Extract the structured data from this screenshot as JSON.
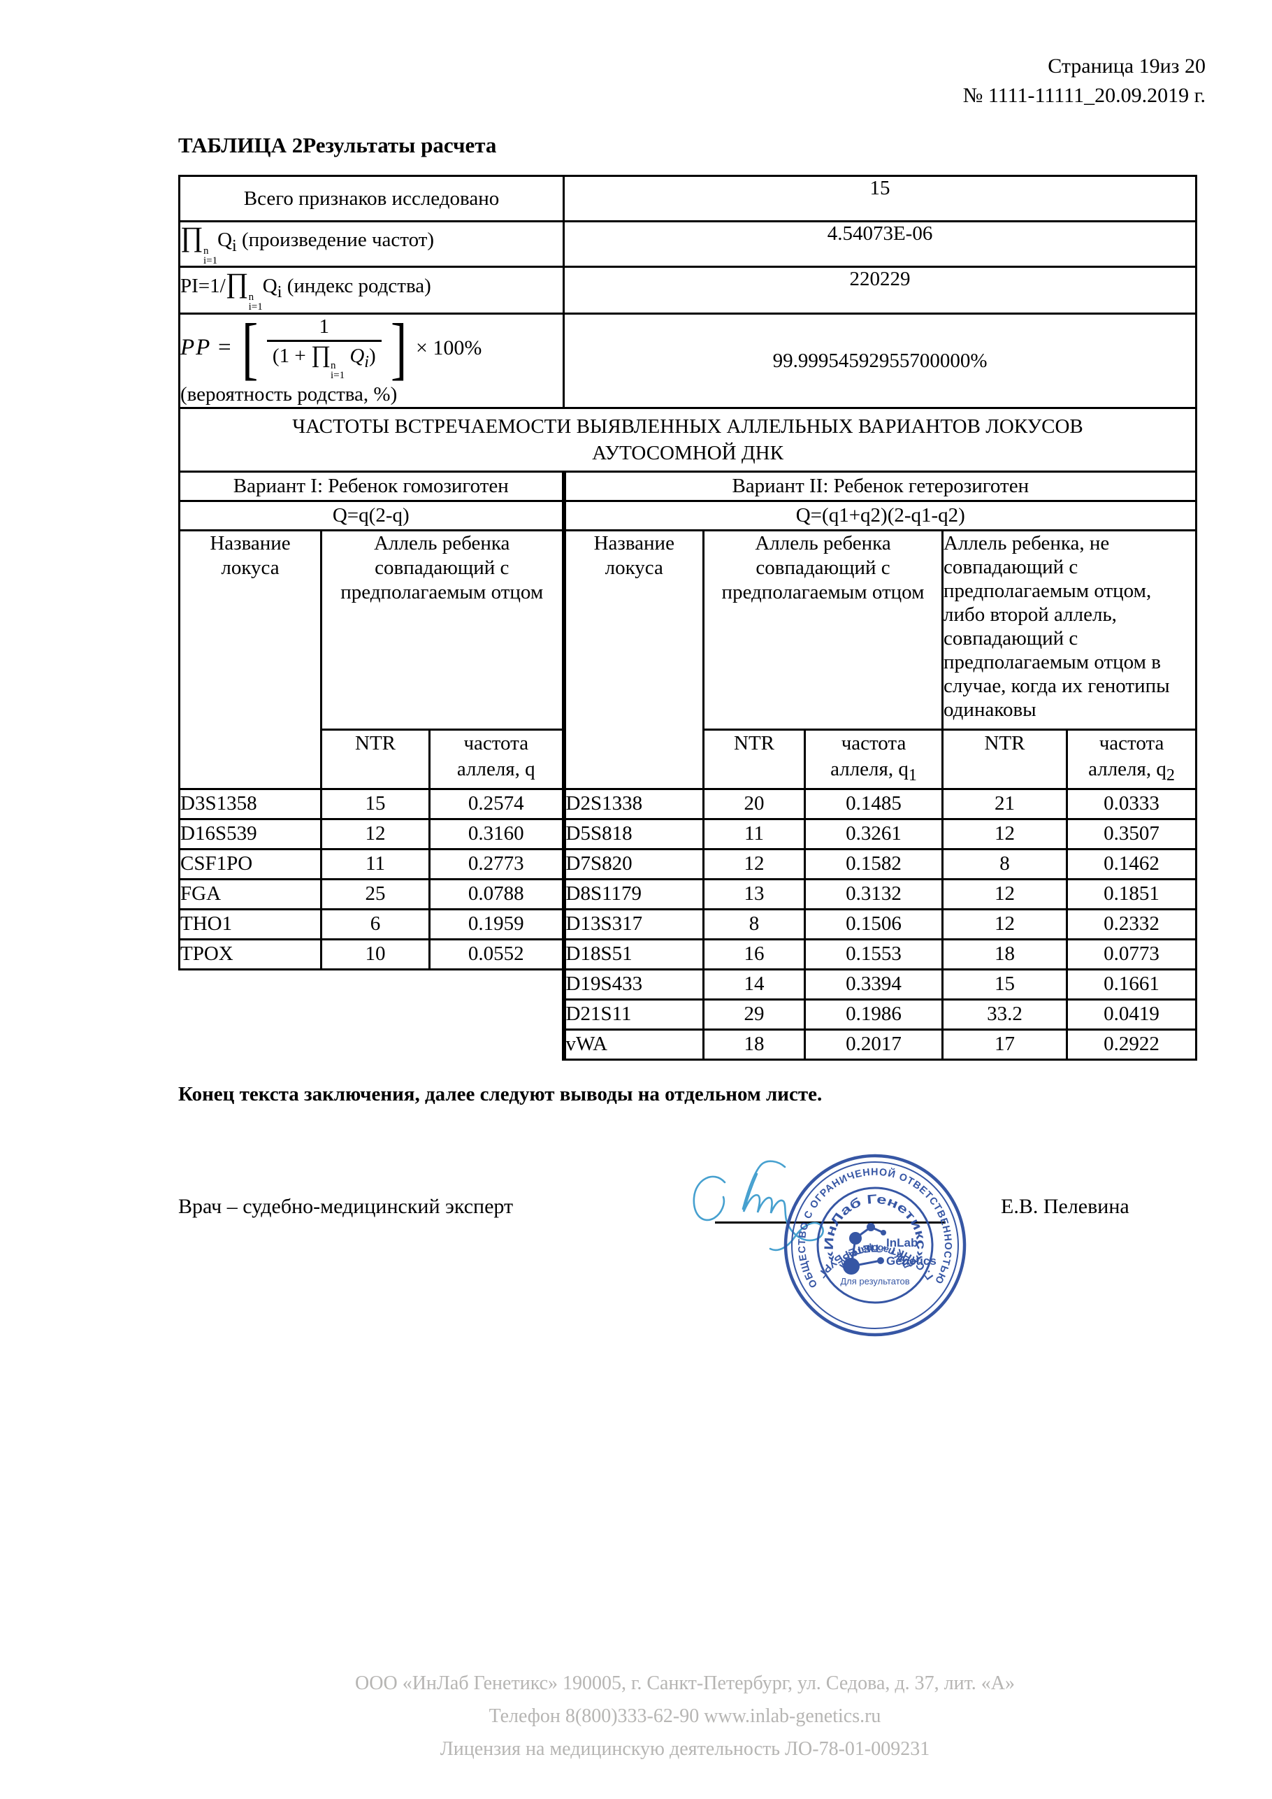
{
  "header": {
    "page_line": "Страница 19из 20",
    "doc_line": "№ 1111-11111_20.09.2019 г."
  },
  "title": "ТАБЛИЦА 2Результаты расчета",
  "colors": {
    "stamp_blue": "#2c4da0",
    "signature_blue": "#46a0cf",
    "footer_gray": "#b6b5b3"
  },
  "results": {
    "total_label": "Всего признаков исследовано",
    "total_value": "15",
    "product_value": "4.54073E-06",
    "product_caption": " (произведение частот)",
    "pi_prefix": "PI=1/",
    "pi_caption": " (индекс родства)",
    "pi_value": "220229",
    "pp_value": "99.99954592955700000%",
    "pp_caption": "(вероятность родства, %)"
  },
  "math": {
    "prod": "∏",
    "sup_n": "n",
    "sub_i1": "i=1",
    "q": "Q",
    "sub_i": "i",
    "pp": "PP",
    "eq": "=",
    "one": "1",
    "den_open": "(1 +",
    "den_close": ")",
    "lbracket": "[",
    "rbracket": "]",
    "times100": "× 100%"
  },
  "freq_section": {
    "title_line1": "ЧАСТОТЫ ВСТРЕЧАЕМОСТИ ВЫЯВЛЕННЫХ АЛЛЕЛЬНЫХ ВАРИАНТОВ ЛОКУСОВ",
    "title_line2": "АУТОСОМНОЙ ДНК",
    "variant1": "Вариант I: Ребенок гомозиготен",
    "variant2": "Вариант II: Ребенок гетерозиготен",
    "q_formula1": "Q=q(2-q)",
    "q_formula2": "Q=(q1+q2)(2-q1-q2)",
    "col_locus": "Название локуса",
    "col_allele_match": "Аллель ребенка совпадающий с предполагаемым отцом",
    "col_allele_nomatch": "Аллель ребенка, не совпадающий с предполагаемым отцом, либо второй аллель, совпадающий с предполагаемым отцом в случае, когда их генотипы одинаковы",
    "ntr": "NTR",
    "freq_line1": "частота",
    "freq_line2": "аллеля, q",
    "sub1": "1",
    "sub2": "2"
  },
  "variant1_rows": [
    {
      "locus": "D3S1358",
      "ntr": "15",
      "q": "0.2574"
    },
    {
      "locus": "D16S539",
      "ntr": "12",
      "q": "0.3160"
    },
    {
      "locus": "CSF1PO",
      "ntr": "11",
      "q": "0.2773"
    },
    {
      "locus": "FGA",
      "ntr": "25",
      "q": "0.0788"
    },
    {
      "locus": "THO1",
      "ntr": "6",
      "q": "0.1959"
    },
    {
      "locus": "TPOX",
      "ntr": "10",
      "q": "0.0552"
    }
  ],
  "variant2_rows": [
    {
      "locus": "D2S1338",
      "ntr": "20",
      "q1": "0.1485",
      "ntr2": "21",
      "q2": "0.0333"
    },
    {
      "locus": "D5S818",
      "ntr": "11",
      "q1": "0.3261",
      "ntr2": "12",
      "q2": "0.3507"
    },
    {
      "locus": "D7S820",
      "ntr": "12",
      "q1": "0.1582",
      "ntr2": "8",
      "q2": "0.1462"
    },
    {
      "locus": "D8S1179",
      "ntr": "13",
      "q1": "0.3132",
      "ntr2": "12",
      "q2": "0.1851"
    },
    {
      "locus": "D13S317",
      "ntr": "8",
      "q1": "0.1506",
      "ntr2": "12",
      "q2": "0.2332"
    },
    {
      "locus": "D18S51",
      "ntr": "16",
      "q1": "0.1553",
      "ntr2": "18",
      "q2": "0.0773"
    },
    {
      "locus": "D19S433",
      "ntr": "14",
      "q1": "0.3394",
      "ntr2": "15",
      "q2": "0.1661"
    },
    {
      "locus": "D21S11",
      "ntr": "29",
      "q1": "0.1986",
      "ntr2": "33.2",
      "q2": "0.0419"
    },
    {
      "locus": "vWA",
      "ntr": "18",
      "q1": "0.2017",
      "ntr2": "17",
      "q2": "0.2922"
    }
  ],
  "end_text": "Конец текста заключения, далее следуют выводы на отдельном листе.",
  "signature": {
    "role": "Врач – судебно-медицинский эксперт",
    "name": "Е.В. Пелевина"
  },
  "stamp": {
    "outer_top": "ОБЩЕСТВО С ОГРАНИЧЕННОЙ ОТВЕТСТВЕННОСТЬЮ",
    "outer_bottom": "Г. САНКТ - ПЕТЕРБУРГ",
    "inner_top": "«ИнЛаб Генетикс»",
    "inner_bottom": "ДНК лаборатория",
    "logo_line1": "InLab",
    "logo_line2": "Genetics",
    "tagline": "Для результатов"
  },
  "footer": {
    "line1": "ООО «ИнЛаб Генетикс» 190005, г. Санкт-Петербург, ул. Седова, д. 37, лит. «А»",
    "line2": "Телефон 8(800)333-62-90 www.inlab-genetics.ru",
    "line3": "Лицензия на медицинскую деятельность ЛО-78-01-009231"
  }
}
